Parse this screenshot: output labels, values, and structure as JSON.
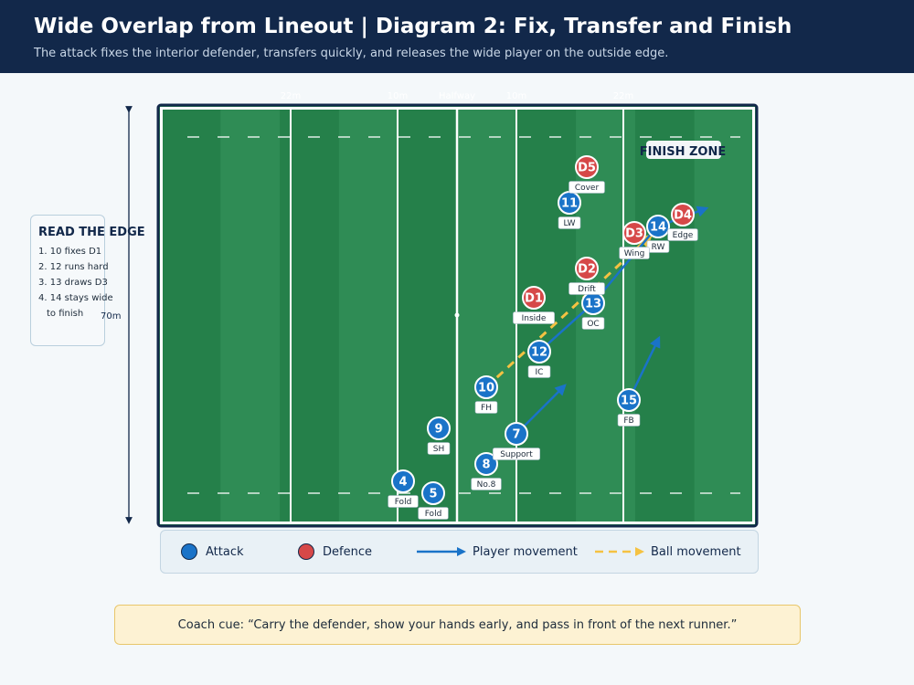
{
  "header": {
    "title": "Wide Overlap from Lineout | Diagram 2: Fix, Transfer and Finish",
    "subtitle": "The attack fixes the interior defender, transfers quickly, and releases the wide player on the outside edge."
  },
  "pitch": {
    "line_labels": [
      "22m",
      "10m",
      "Halfway",
      "10m",
      "22m"
    ],
    "length_label": "70m",
    "finish_zone_label": "FINISH ZONE"
  },
  "read_the_edge": {
    "title": "READ THE EDGE",
    "items": [
      "1. 10 fixes D1",
      "2. 12 runs hard",
      "3. 13 draws D3",
      "4. 14 stays wide",
      "to finish"
    ]
  },
  "players": {
    "attack": [
      {
        "id": "p4",
        "number": "4",
        "role": "Fold"
      },
      {
        "id": "p5",
        "number": "5",
        "role": "Fold"
      },
      {
        "id": "p8",
        "number": "8",
        "role": "No.8"
      },
      {
        "id": "p9",
        "number": "9",
        "role": "SH"
      },
      {
        "id": "p7",
        "number": "7",
        "role": "Support"
      },
      {
        "id": "p10",
        "number": "10",
        "role": "FH"
      },
      {
        "id": "p12",
        "number": "12",
        "role": "IC"
      },
      {
        "id": "p13",
        "number": "13",
        "role": "OC"
      },
      {
        "id": "p15",
        "number": "15",
        "role": "FB"
      },
      {
        "id": "p11",
        "number": "11",
        "role": "LW"
      },
      {
        "id": "p14",
        "number": "14",
        "role": "RW"
      }
    ],
    "defence": [
      {
        "id": "d1",
        "number": "D1",
        "role": "Inside"
      },
      {
        "id": "d2",
        "number": "D2",
        "role": "Drift"
      },
      {
        "id": "d3",
        "number": "D3",
        "role": "Wing"
      },
      {
        "id": "d4",
        "number": "D4",
        "role": "Edge"
      },
      {
        "id": "d5",
        "number": "D5",
        "role": "Cover"
      }
    ]
  },
  "legend": {
    "attack": "Attack",
    "defence": "Defence",
    "player_movement": "Player movement",
    "ball_movement": "Ball movement"
  },
  "coach_cue": "Coach cue: “Carry the defender, show your hands early, and pass in front of the next runner.”",
  "colors": {
    "header_bg": "#12284a",
    "attack": "#1a73c8",
    "defence": "#d64848",
    "ball": "#f5c242",
    "pitch_dark": "#25804a",
    "pitch_light": "#2f8c55"
  }
}
